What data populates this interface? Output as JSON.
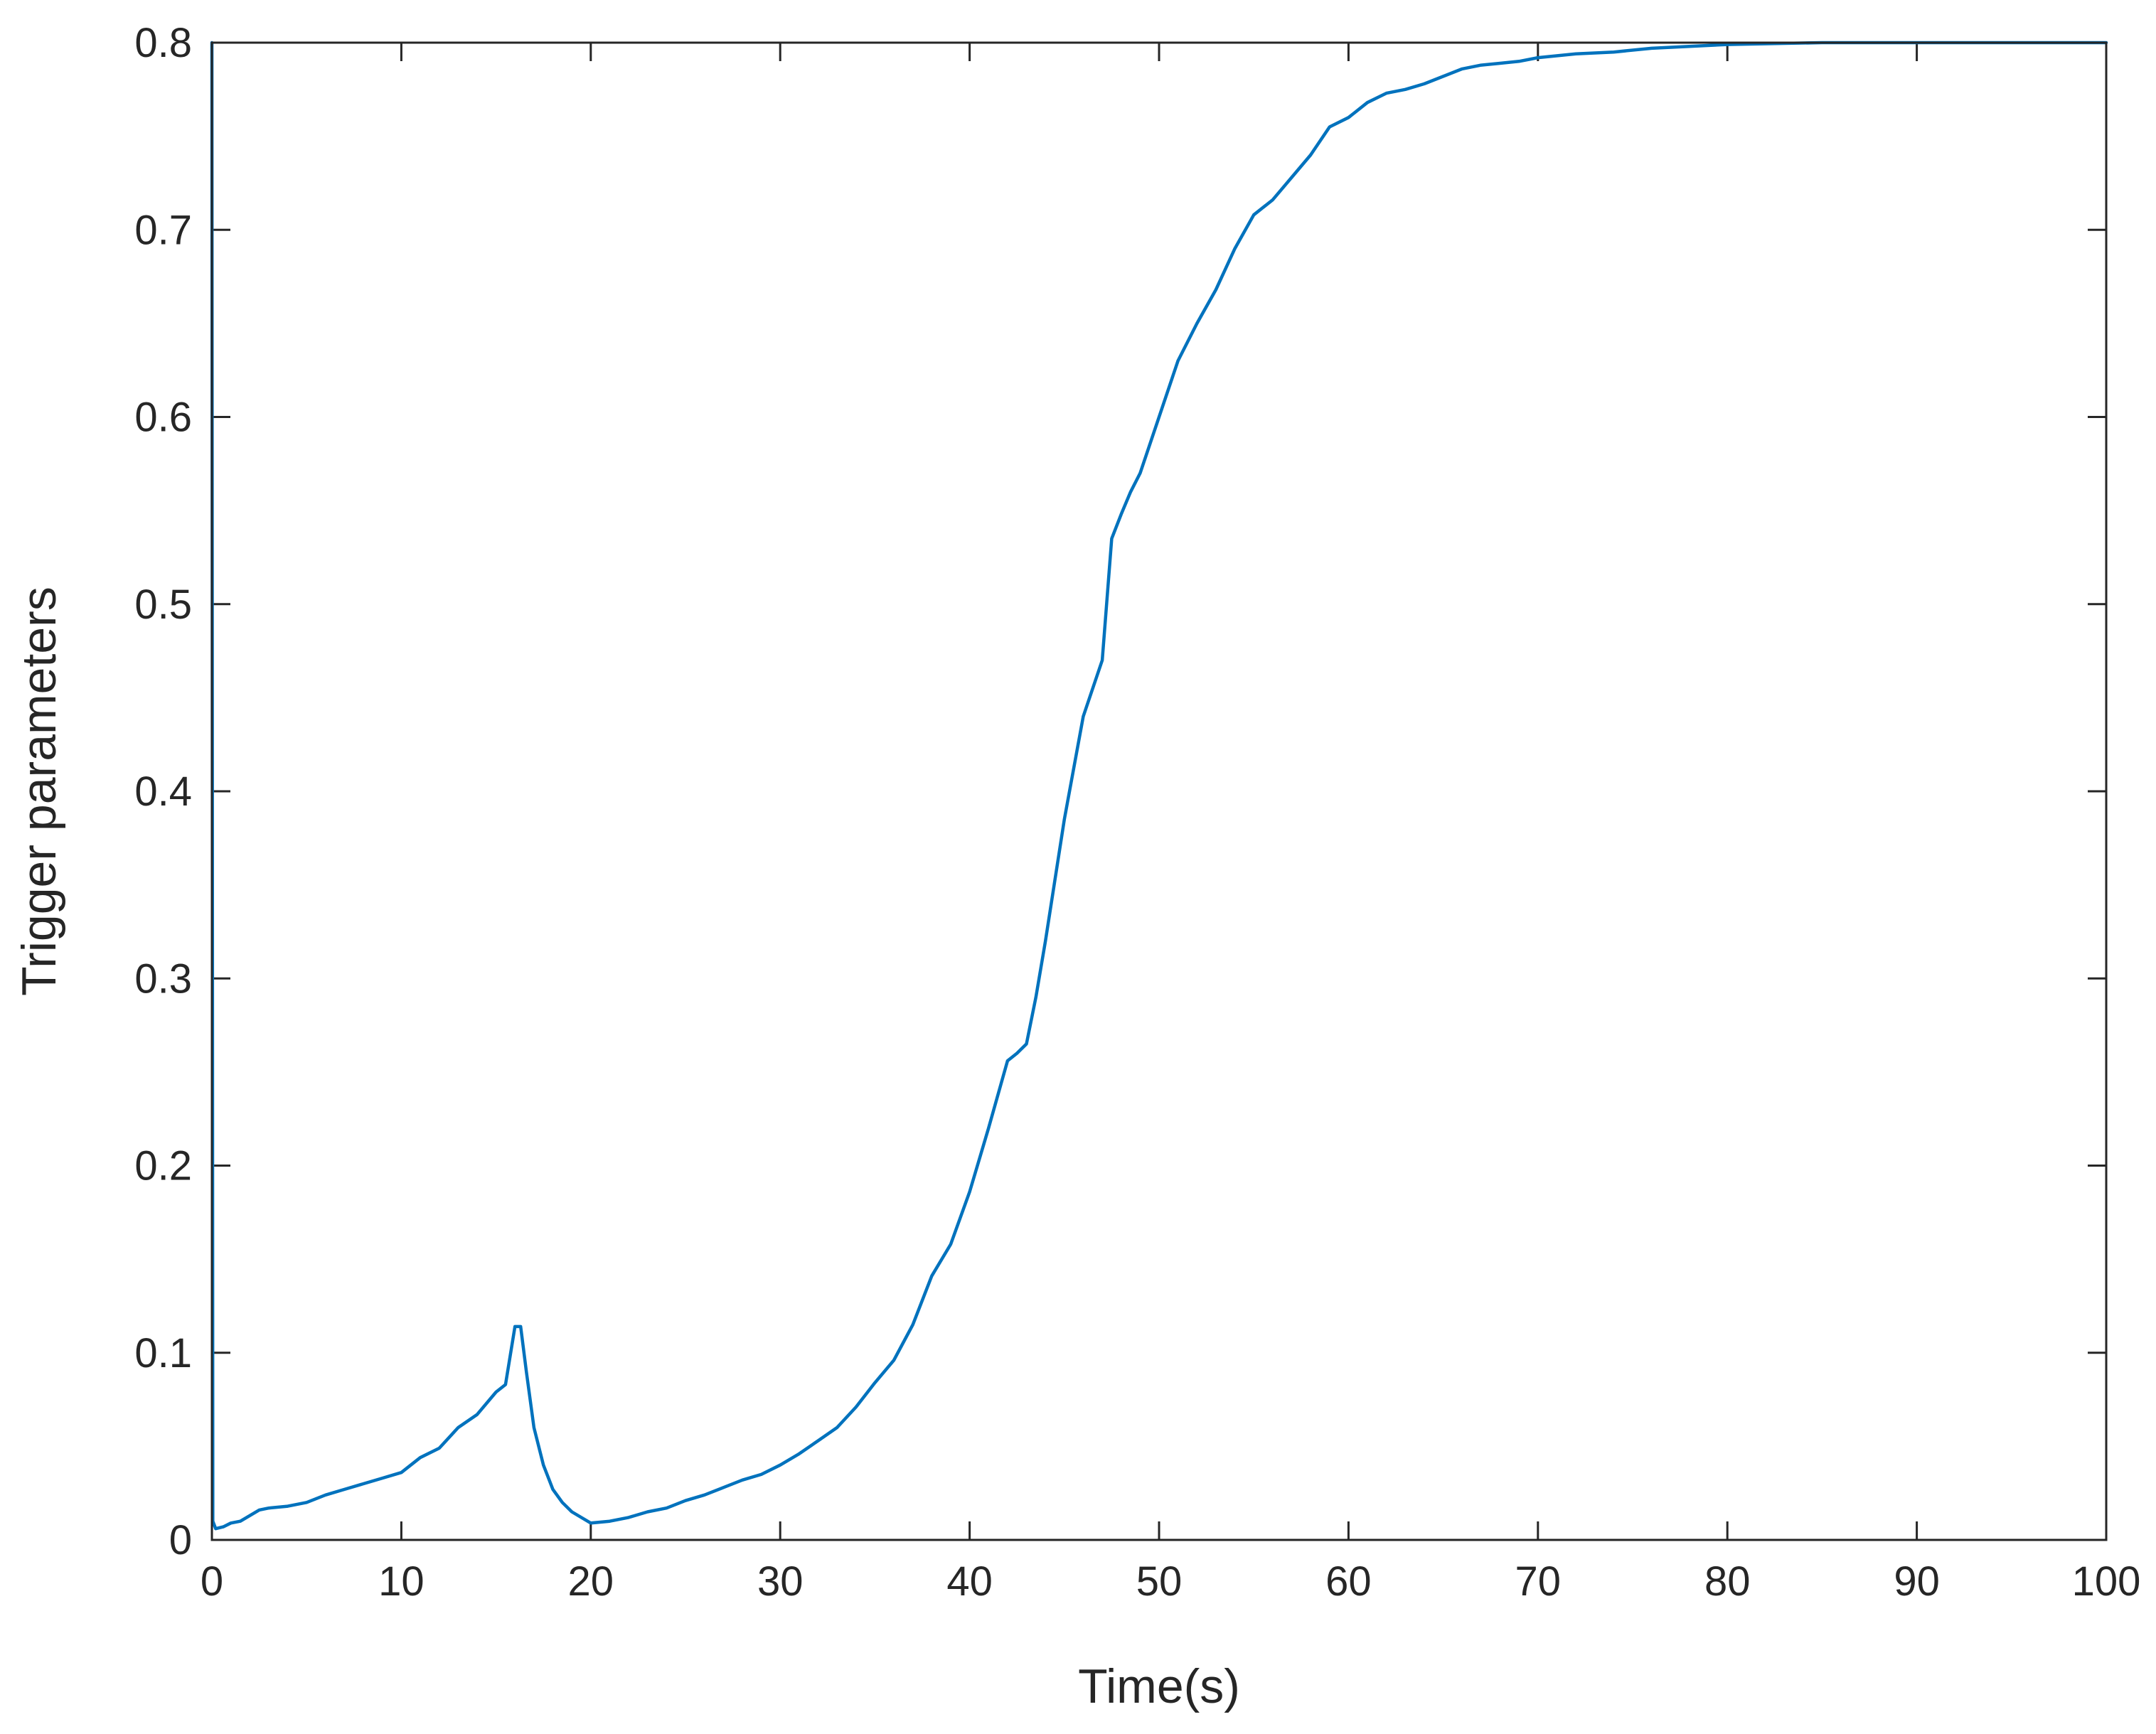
{
  "chart_data": {
    "type": "line",
    "title": "",
    "xlabel": "Time(s)",
    "ylabel": "Trigger parameters",
    "xlim": [
      0,
      100
    ],
    "ylim": [
      0,
      0.8
    ],
    "xticks": [
      "0",
      "10",
      "20",
      "30",
      "40",
      "50",
      "60",
      "70",
      "80",
      "90",
      "100"
    ],
    "yticks": [
      "0",
      "0.1",
      "0.2",
      "0.3",
      "0.4",
      "0.5",
      "0.6",
      "0.7",
      "0.8"
    ],
    "grid": false,
    "box": true,
    "series": [
      {
        "color": "#0072BD",
        "x": [
          0,
          0.05,
          0.2,
          0.6,
          1.0,
          1.5,
          2.0,
          2.5,
          3.0,
          4.0,
          5.0,
          6.0,
          7.0,
          8.0,
          9.0,
          10.0,
          11.0,
          12.0,
          13.0,
          14.0,
          15.0,
          15.5,
          16.0,
          16.3,
          16.6,
          17.0,
          17.5,
          18.0,
          18.5,
          19.0,
          20.0,
          21.0,
          22.0,
          23.0,
          24.0,
          25.0,
          26.0,
          27.0,
          28.0,
          29.0,
          30.0,
          31.0,
          32.0,
          33.0,
          34.0,
          35.0,
          36.0,
          37.0,
          38.0,
          39.0,
          40.0,
          41.0,
          42.0,
          42.5,
          43.0,
          43.5,
          44.0,
          45.0,
          46.0,
          47.0,
          47.5,
          48.0,
          48.5,
          49.0,
          50.0,
          51.0,
          52.0,
          53.0,
          54.0,
          55.0,
          56.0,
          57.0,
          58.0,
          59.0,
          60.0,
          61.0,
          62.0,
          63.0,
          64.0,
          65.0,
          66.0,
          67.0,
          68.0,
          69.0,
          70.0,
          72.0,
          74.0,
          76.0,
          78.0,
          80.0,
          85.0,
          90.0,
          95.0,
          100.0
        ],
        "y": [
          0.8,
          0.01,
          0.006,
          0.007,
          0.009,
          0.01,
          0.013,
          0.016,
          0.017,
          0.018,
          0.02,
          0.024,
          0.027,
          0.03,
          0.033,
          0.036,
          0.044,
          0.049,
          0.06,
          0.067,
          0.079,
          0.083,
          0.114,
          0.114,
          0.09,
          0.06,
          0.04,
          0.027,
          0.02,
          0.015,
          0.009,
          0.01,
          0.012,
          0.015,
          0.017,
          0.021,
          0.024,
          0.028,
          0.032,
          0.035,
          0.04,
          0.046,
          0.053,
          0.06,
          0.071,
          0.084,
          0.096,
          0.115,
          0.141,
          0.158,
          0.186,
          0.22,
          0.256,
          0.26,
          0.265,
          0.29,
          0.32,
          0.385,
          0.44,
          0.47,
          0.535,
          0.548,
          0.56,
          0.57,
          0.6,
          0.63,
          0.65,
          0.668,
          0.69,
          0.708,
          0.716,
          0.728,
          0.74,
          0.755,
          0.76,
          0.768,
          0.773,
          0.775,
          0.778,
          0.782,
          0.786,
          0.788,
          0.789,
          0.79,
          0.792,
          0.794,
          0.795,
          0.797,
          0.798,
          0.799,
          0.8,
          0.8,
          0.8,
          0.8
        ]
      }
    ]
  }
}
